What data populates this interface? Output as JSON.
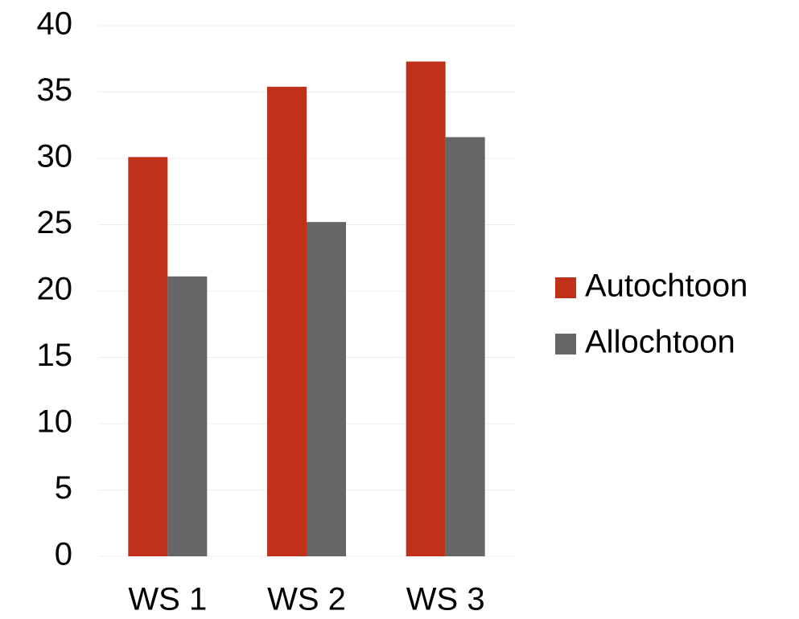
{
  "chart_data": {
    "type": "bar",
    "categories": [
      "WS 1",
      "WS 2",
      "WS 3"
    ],
    "series": [
      {
        "name": "Autochtoon",
        "color": "#c0311a",
        "values": [
          30.1,
          35.4,
          37.3
        ]
      },
      {
        "name": "Allochtoon",
        "color": "#666666",
        "values": [
          21.1,
          25.2,
          31.6
        ]
      }
    ],
    "ylim": [
      0,
      40
    ],
    "yticks": [
      0,
      5,
      10,
      15,
      20,
      25,
      30,
      35,
      40
    ],
    "grid": true,
    "legend": "right"
  }
}
